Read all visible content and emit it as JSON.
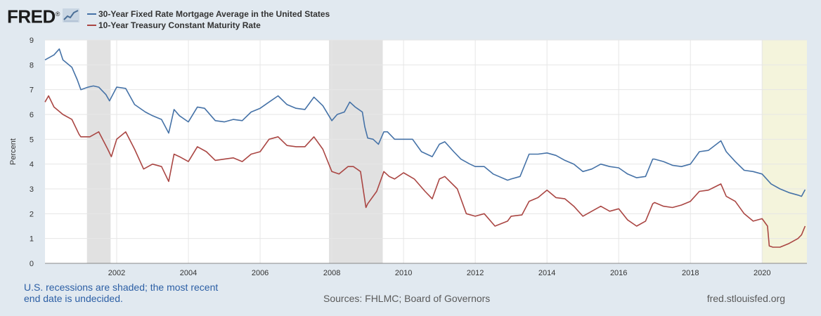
{
  "header": {
    "logo_text": "FRED",
    "logo_mark": "®",
    "logo_icon": "line-chart-icon"
  },
  "footer": {
    "note_line1": "U.S. recessions are shaded; the most recent",
    "note_line2": "end date is undecided.",
    "sources": "Sources: FHLMC; Board of Governors",
    "site": "fred.stlouisfed.org"
  },
  "colors": {
    "background": "#e1e9f0",
    "plot_bg": "#ffffff",
    "grid": "#e6e6e6",
    "recession": "#e1e1e1",
    "recession_open": "#f4f4dc",
    "mortgage": "#4572a7",
    "treasury": "#aa4643"
  },
  "chart_data": {
    "type": "line",
    "title": "",
    "xlabel": "",
    "ylabel": "Percent",
    "ylim": [
      0,
      9
    ],
    "xlim": [
      2000.0,
      2021.25
    ],
    "yticks": [
      "0",
      "1",
      "2",
      "3",
      "4",
      "5",
      "6",
      "7",
      "8",
      "9"
    ],
    "xticks": [
      "2002",
      "2004",
      "2006",
      "2008",
      "2010",
      "2012",
      "2014",
      "2016",
      "2018",
      "2020"
    ],
    "legend_position": "top-left",
    "recessions": [
      {
        "start": 2001.17,
        "end": 2001.83,
        "open_ended": false
      },
      {
        "start": 2007.92,
        "end": 2009.42,
        "open_ended": false
      },
      {
        "start": 2020.0,
        "end": 2021.25,
        "open_ended": true
      }
    ],
    "series": [
      {
        "name": "30-Year Fixed Rate Mortgage Average in the United States",
        "color": "#4572a7",
        "x": [
          2000.0,
          2000.25,
          2000.4,
          2000.5,
          2000.75,
          2000.9,
          2001.0,
          2001.2,
          2001.35,
          2001.5,
          2001.7,
          2001.8,
          2002.0,
          2002.25,
          2002.5,
          2002.8,
          2003.0,
          2003.25,
          2003.45,
          2003.6,
          2003.75,
          2004.0,
          2004.25,
          2004.45,
          2004.75,
          2005.0,
          2005.25,
          2005.5,
          2005.75,
          2006.0,
          2006.25,
          2006.5,
          2006.75,
          2007.0,
          2007.25,
          2007.5,
          2007.75,
          2008.0,
          2008.15,
          2008.35,
          2008.5,
          2008.65,
          2008.85,
          2008.92,
          2009.0,
          2009.15,
          2009.3,
          2009.45,
          2009.55,
          2009.75,
          2010.0,
          2010.25,
          2010.5,
          2010.8,
          2011.0,
          2011.15,
          2011.4,
          2011.6,
          2011.85,
          2012.0,
          2012.25,
          2012.5,
          2012.9,
          2013.0,
          2013.25,
          2013.5,
          2013.75,
          2014.0,
          2014.25,
          2014.5,
          2014.75,
          2015.0,
          2015.25,
          2015.5,
          2015.75,
          2016.0,
          2016.25,
          2016.5,
          2016.75,
          2016.95,
          2017.0,
          2017.25,
          2017.5,
          2017.75,
          2018.0,
          2018.25,
          2018.5,
          2018.85,
          2019.0,
          2019.25,
          2019.5,
          2019.75,
          2020.0,
          2020.25,
          2020.5,
          2020.75,
          2021.0,
          2021.1,
          2021.2
        ],
        "values": [
          8.2,
          8.4,
          8.64,
          8.2,
          7.9,
          7.4,
          7.0,
          7.1,
          7.15,
          7.1,
          6.8,
          6.55,
          7.1,
          7.05,
          6.4,
          6.1,
          5.95,
          5.8,
          5.25,
          6.2,
          5.95,
          5.7,
          6.3,
          6.25,
          5.75,
          5.7,
          5.8,
          5.75,
          6.1,
          6.25,
          6.5,
          6.75,
          6.4,
          6.25,
          6.2,
          6.7,
          6.35,
          5.75,
          6.0,
          6.1,
          6.5,
          6.3,
          6.1,
          5.5,
          5.05,
          5.0,
          4.8,
          5.3,
          5.3,
          5.0,
          5.0,
          5.0,
          4.5,
          4.3,
          4.8,
          4.9,
          4.5,
          4.2,
          4.0,
          3.9,
          3.9,
          3.6,
          3.35,
          3.4,
          3.5,
          4.4,
          4.4,
          4.45,
          4.35,
          4.15,
          4.0,
          3.7,
          3.8,
          4.0,
          3.9,
          3.85,
          3.6,
          3.45,
          3.5,
          4.2,
          4.2,
          4.1,
          3.95,
          3.9,
          4.0,
          4.5,
          4.55,
          4.94,
          4.5,
          4.1,
          3.75,
          3.7,
          3.6,
          3.2,
          3.0,
          2.85,
          2.75,
          2.7,
          2.97
        ]
      },
      {
        "name": "10-Year Treasury Constant Maturity Rate",
        "color": "#aa4643",
        "x": [
          2000.0,
          2000.1,
          2000.25,
          2000.5,
          2000.75,
          2000.95,
          2001.0,
          2001.25,
          2001.5,
          2001.75,
          2001.85,
          2002.0,
          2002.25,
          2002.5,
          2002.75,
          2003.0,
          2003.25,
          2003.45,
          2003.6,
          2003.75,
          2004.0,
          2004.25,
          2004.5,
          2004.75,
          2005.0,
          2005.25,
          2005.5,
          2005.75,
          2006.0,
          2006.25,
          2006.5,
          2006.75,
          2007.0,
          2007.25,
          2007.5,
          2007.75,
          2008.0,
          2008.2,
          2008.45,
          2008.6,
          2008.8,
          2008.95,
          2009.0,
          2009.25,
          2009.45,
          2009.6,
          2009.75,
          2010.0,
          2010.3,
          2010.6,
          2010.8,
          2011.0,
          2011.15,
          2011.5,
          2011.75,
          2012.0,
          2012.25,
          2012.55,
          2012.9,
          2013.0,
          2013.3,
          2013.5,
          2013.75,
          2014.0,
          2014.25,
          2014.5,
          2014.75,
          2015.0,
          2015.25,
          2015.5,
          2015.75,
          2016.0,
          2016.25,
          2016.5,
          2016.75,
          2016.95,
          2017.0,
          2017.25,
          2017.5,
          2017.75,
          2018.0,
          2018.25,
          2018.5,
          2018.85,
          2019.0,
          2019.25,
          2019.5,
          2019.75,
          2020.0,
          2020.15,
          2020.2,
          2020.3,
          2020.5,
          2020.75,
          2021.0,
          2021.1,
          2021.2
        ],
        "values": [
          6.5,
          6.75,
          6.3,
          6.0,
          5.8,
          5.2,
          5.1,
          5.1,
          5.3,
          4.6,
          4.3,
          5.0,
          5.3,
          4.6,
          3.8,
          4.0,
          3.9,
          3.3,
          4.4,
          4.3,
          4.1,
          4.7,
          4.5,
          4.15,
          4.2,
          4.25,
          4.1,
          4.4,
          4.5,
          5.0,
          5.1,
          4.75,
          4.7,
          4.7,
          5.1,
          4.6,
          3.7,
          3.6,
          3.9,
          3.9,
          3.7,
          2.25,
          2.4,
          2.9,
          3.7,
          3.5,
          3.4,
          3.65,
          3.4,
          2.9,
          2.6,
          3.4,
          3.5,
          3.0,
          2.0,
          1.9,
          2.0,
          1.5,
          1.7,
          1.9,
          1.95,
          2.5,
          2.65,
          2.95,
          2.65,
          2.6,
          2.3,
          1.9,
          2.1,
          2.3,
          2.1,
          2.2,
          1.75,
          1.5,
          1.7,
          2.4,
          2.45,
          2.3,
          2.25,
          2.35,
          2.5,
          2.9,
          2.95,
          3.2,
          2.7,
          2.5,
          2.0,
          1.7,
          1.8,
          1.5,
          0.7,
          0.65,
          0.65,
          0.8,
          1.0,
          1.15,
          1.5
        ]
      }
    ]
  }
}
